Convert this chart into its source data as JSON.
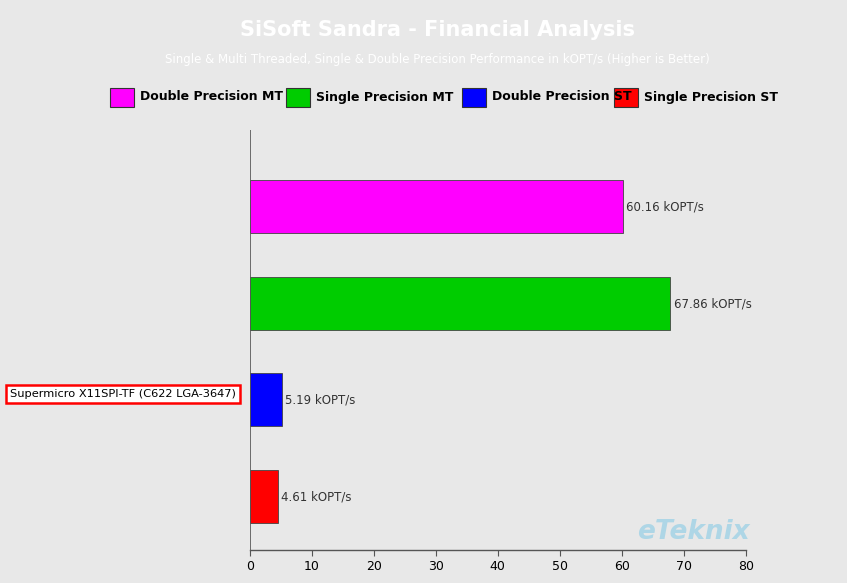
{
  "title": "SiSoft Sandra - Financial Analysis",
  "subtitle": "Single & Multi Threaded, Single & Double Precision Performance in kOPT/s (Higher is Better)",
  "title_bg_color": "#29ABE2",
  "title_text_color": "#FFFFFF",
  "bg_color": "#E8E8E8",
  "categories": [
    "Double Precision MT",
    "Single Precision MT",
    "Double Precision ST",
    "Single Precision ST"
  ],
  "values": [
    60.16,
    67.86,
    5.19,
    4.61
  ],
  "bar_colors": [
    "#FF00FF",
    "#00CC00",
    "#0000FF",
    "#FF0000"
  ],
  "legend_colors": [
    "#FF00FF",
    "#00CC00",
    "#0000FF",
    "#FF0000"
  ],
  "value_labels": [
    "60.16 kOPT/s",
    "67.86 kOPT/s",
    "5.19 kOPT/s",
    "4.61 kOPT/s"
  ],
  "device_label": "Supermicro X11SPI-TF (C622 LGA-3647)",
  "xlim": [
    0,
    80
  ],
  "xticks": [
    0,
    10,
    20,
    30,
    40,
    50,
    60,
    70,
    80
  ],
  "watermark": "eTeknix",
  "watermark_color": "#A8D4E6"
}
